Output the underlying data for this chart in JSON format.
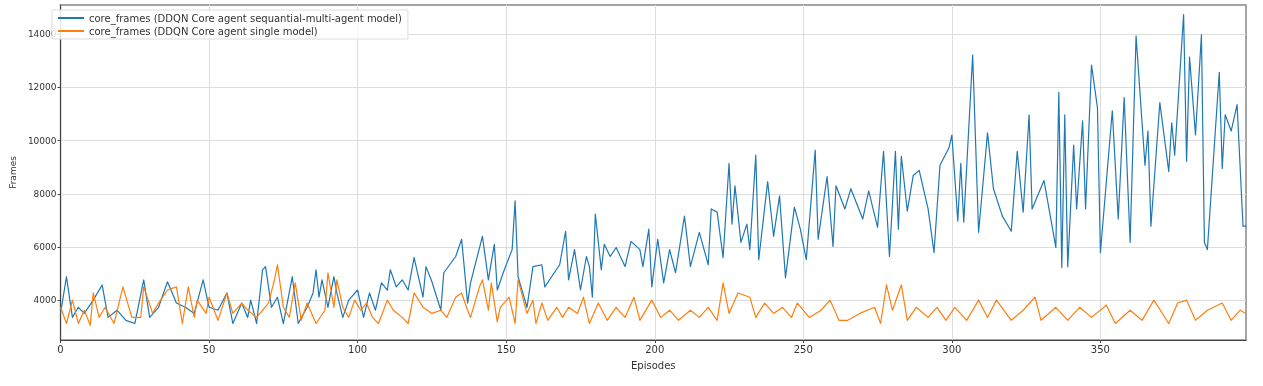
{
  "chart_data": {
    "type": "line",
    "xlabel": "Episodes",
    "ylabel": "Frames",
    "xlim": [
      0,
      399
    ],
    "ylim": [
      2500,
      15100
    ],
    "xticks": [
      0,
      50,
      100,
      150,
      200,
      250,
      300,
      350
    ],
    "yticks": [
      4000,
      6000,
      8000,
      10000,
      12000,
      14000
    ],
    "grid": true,
    "legend": "top left",
    "marker": "none",
    "line_style": "solid",
    "series": [
      {
        "name": "core_frames (DDQN Core agent sequantial-multi-agent model)",
        "color": "#1f77b4",
        "x": [
          0,
          2,
          4,
          6,
          8,
          11,
          14,
          16,
          19,
          22,
          25,
          28,
          30,
          33,
          36,
          39,
          42,
          45,
          48,
          50,
          53,
          56,
          58,
          61,
          63,
          64,
          66,
          68,
          69,
          71,
          73,
          75,
          78,
          80,
          83,
          85,
          86,
          87,
          88,
          90,
          92,
          93,
          95,
          97,
          100,
          102,
          104,
          106,
          108,
          110,
          111,
          113,
          115,
          117,
          119,
          122,
          123,
          125,
          128,
          129,
          133,
          135,
          137,
          138,
          142,
          144,
          146,
          147,
          149,
          152,
          153,
          154,
          157,
          159,
          162,
          163,
          168,
          170,
          171,
          173,
          175,
          177,
          178,
          179,
          180,
          182,
          183,
          185,
          187,
          190,
          192,
          195,
          196,
          198,
          199,
          201,
          203,
          205,
          207,
          210,
          212,
          215,
          218,
          219,
          221,
          223,
          225,
          226,
          227,
          229,
          231,
          232,
          234,
          235,
          238,
          240,
          242,
          244,
          247,
          249,
          251,
          254,
          255,
          258,
          260,
          261,
          264,
          266,
          270,
          272,
          275,
          277,
          279,
          281,
          282,
          283,
          285,
          287,
          289,
          292,
          294,
          296,
          299,
          300,
          302,
          303,
          304,
          307,
          309,
          312,
          314,
          317,
          320,
          322,
          324,
          326,
          327,
          331,
          335,
          336,
          337,
          338,
          339,
          341,
          342,
          344,
          345,
          347,
          349,
          350,
          354,
          356,
          358,
          360,
          362,
          365,
          366,
          367,
          370,
          373,
          374,
          375,
          378,
          379,
          380,
          382,
          384,
          385,
          386,
          390,
          391,
          392,
          394,
          396,
          398,
          399
        ],
        "values": [
          3500,
          4880,
          3350,
          3730,
          3500,
          4000,
          4570,
          3350,
          3620,
          3240,
          3120,
          4760,
          3350,
          3730,
          4690,
          3890,
          3730,
          3500,
          4760,
          3730,
          3620,
          4270,
          3120,
          3890,
          3350,
          4000,
          3120,
          5140,
          5260,
          3730,
          4110,
          3120,
          4880,
          3120,
          3730,
          4270,
          5140,
          4110,
          4760,
          3730,
          4880,
          4270,
          3350,
          4000,
          4380,
          3350,
          4270,
          3620,
          4650,
          4380,
          5140,
          4500,
          4760,
          4380,
          5600,
          4110,
          5260,
          4690,
          3620,
          5030,
          5640,
          6290,
          3890,
          4650,
          6400,
          4760,
          6100,
          4380,
          5030,
          5900,
          7730,
          4880,
          3730,
          5260,
          5330,
          4500,
          5330,
          6590,
          4760,
          5900,
          4380,
          5640,
          5260,
          4110,
          7240,
          5140,
          6100,
          5640,
          5980,
          5260,
          6210,
          5900,
          5260,
          6670,
          4500,
          6290,
          4650,
          5900,
          5030,
          7160,
          5260,
          6550,
          5330,
          7430,
          7310,
          5600,
          9140,
          6860,
          8300,
          6170,
          6860,
          5900,
          9450,
          5520,
          8460,
          6400,
          7920,
          4840,
          7500,
          6670,
          5520,
          9640,
          6290,
          8650,
          6020,
          8300,
          7430,
          8190,
          7050,
          8110,
          6740,
          9600,
          5640,
          9600,
          6670,
          9410,
          7350,
          8690,
          8880,
          7430,
          5790,
          9070,
          9720,
          10210,
          6970,
          9140,
          6930,
          13220,
          6550,
          10290,
          8190,
          7160,
          6590,
          9600,
          7310,
          10970,
          7430,
          8500,
          5980,
          11810,
          5220,
          10970,
          5260,
          9830,
          7430,
          10740,
          7430,
          12840,
          11240,
          5790,
          11120,
          7050,
          11620,
          6170,
          13940,
          9070,
          10360,
          6780,
          11430,
          8840,
          10670,
          9450,
          14740,
          9220,
          13140,
          10210,
          13980,
          6170,
          5900,
          12570,
          8950,
          10970,
          10360,
          11350,
          6780,
          6780
        ]
      },
      {
        "name": "core_frames (DDQN Core agent single model)",
        "color": "#ff7f0e",
        "x": [
          0,
          2,
          4,
          6,
          8,
          10,
          11,
          13,
          15,
          18,
          21,
          24,
          27,
          28,
          31,
          33,
          36,
          39,
          41,
          43,
          45,
          46,
          49,
          50,
          53,
          56,
          58,
          61,
          63,
          66,
          70,
          72,
          73,
          75,
          77,
          79,
          81,
          83,
          86,
          89,
          90,
          92,
          93,
          95,
          97,
          99,
          101,
          103,
          105,
          107,
          110,
          112,
          115,
          117,
          119,
          122,
          125,
          128,
          130,
          133,
          135,
          137,
          138,
          141,
          142,
          144,
          145,
          147,
          148,
          151,
          153,
          154,
          157,
          159,
          160,
          162,
          164,
          167,
          169,
          171,
          174,
          176,
          178,
          181,
          184,
          187,
          190,
          193,
          195,
          199,
          202,
          205,
          208,
          212,
          215,
          218,
          221,
          223,
          225,
          228,
          232,
          234,
          237,
          240,
          243,
          246,
          248,
          252,
          256,
          259,
          262,
          265,
          269,
          274,
          276,
          278,
          280,
          283,
          285,
          288,
          292,
          295,
          298,
          301,
          305,
          309,
          312,
          315,
          320,
          324,
          328,
          330,
          335,
          339,
          343,
          347,
          352,
          355,
          360,
          364,
          368,
          373,
          376,
          379,
          382,
          386,
          391,
          394,
          397,
          399
        ],
        "values": [
          3730,
          3120,
          4000,
          3120,
          3620,
          3050,
          4270,
          3350,
          3730,
          3120,
          4500,
          3350,
          3350,
          4500,
          3500,
          3890,
          4380,
          4500,
          3120,
          4500,
          3350,
          4000,
          3500,
          4110,
          3240,
          4270,
          3500,
          3890,
          3620,
          3350,
          3890,
          4760,
          5330,
          3730,
          3350,
          4650,
          3240,
          3890,
          3120,
          3620,
          5030,
          3730,
          4760,
          3730,
          3350,
          4000,
          3620,
          3890,
          3350,
          3120,
          4000,
          3620,
          3350,
          3120,
          4270,
          3730,
          3500,
          3620,
          3350,
          4110,
          4270,
          3620,
          3350,
          4500,
          4760,
          3620,
          4650,
          3180,
          3730,
          4110,
          3120,
          4760,
          3500,
          4000,
          3120,
          3890,
          3240,
          3730,
          3350,
          3730,
          3500,
          4110,
          3120,
          3890,
          3240,
          3730,
          3350,
          4110,
          3240,
          4000,
          3350,
          3620,
          3240,
          3620,
          3350,
          3730,
          3240,
          4650,
          3500,
          4270,
          4110,
          3350,
          3890,
          3500,
          3730,
          3350,
          3890,
          3350,
          3620,
          4000,
          3240,
          3240,
          3500,
          3730,
          3120,
          4570,
          3620,
          4570,
          3240,
          3730,
          3350,
          3730,
          3240,
          3730,
          3240,
          4000,
          3350,
          4000,
          3240,
          3620,
          4110,
          3240,
          3730,
          3240,
          3730,
          3350,
          3810,
          3120,
          3620,
          3240,
          4000,
          3120,
          3890,
          4000,
          3240,
          3620,
          3890,
          3240,
          3620,
          3500
        ]
      }
    ]
  }
}
